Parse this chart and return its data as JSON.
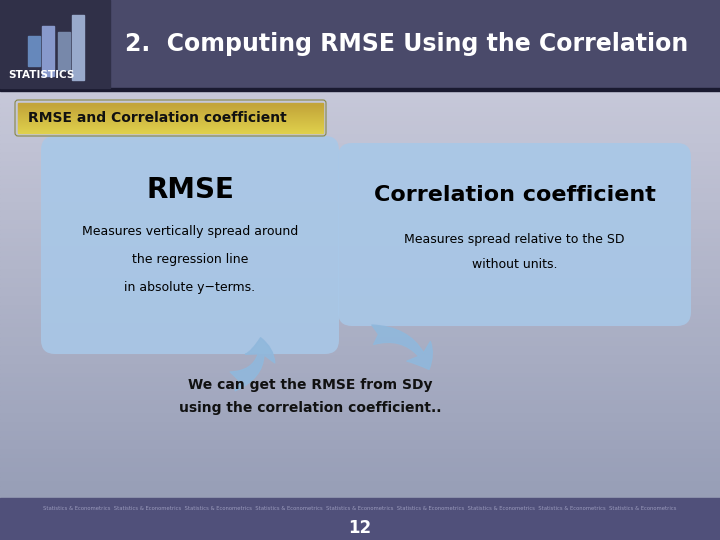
{
  "title": "2.  Computing RMSE Using the Correlation",
  "statistics_label": "STATISTICS",
  "header_bg_color": "#4a4a6a",
  "subtitle_label": "RMSE and Correlation coefficient",
  "subtitle_bg_top": "#d4c878",
  "subtitle_bg_bottom": "#a89040",
  "subtitle_text_color": "#111111",
  "box1_title": "RMSE",
  "box1_lines": [
    "Measures vertically spread around",
    "the regression line",
    "in absolute y−terms."
  ],
  "box2_title": "Correlation coefficient",
  "box2_lines": [
    "Measures spread relative to the SD",
    "without units."
  ],
  "box_color": "#a8c8e8",
  "arrow_color": "#90b8dc",
  "bottom_text1": "We can get the RMSE from SDy",
  "bottom_text2": "using the correlation coefficient..",
  "footer_repeat_text": "Statistics & Econometrics  Statistics & Econometrics  Statistics & Econometrics  Statistics & Econometrics  Statistics & Econometrics  Statistics & Econometrics  Statistics & Econometrics  Statistics & Econometrics  Statistics & Econometrics",
  "page_number": "12",
  "bg_top_color": "#d0d0de",
  "bg_bottom_color": "#8888a8",
  "footer_color": "#50507a",
  "header_line_color": "#1a1a30"
}
